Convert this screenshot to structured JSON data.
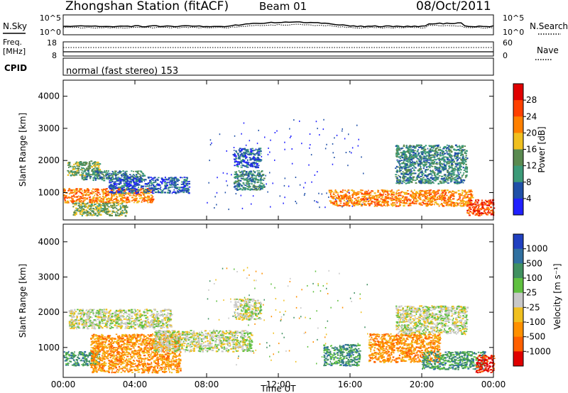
{
  "header": {
    "station": "Zhongshan Station (fitACF)",
    "beam": "Beam 01",
    "date": "08/Oct/2011"
  },
  "nsky_panel": {
    "left_label": "N.Sky",
    "right_label": "N.Search",
    "left_ticks": [
      "10^5",
      "10^0"
    ],
    "right_ticks": [
      "10^5",
      "10^0"
    ]
  },
  "freq_panel": {
    "left_label_1": "Freq.",
    "left_label_2": "[MHz]",
    "right_label": "Nave",
    "left_ticks": [
      "18",
      "8"
    ],
    "right_ticks": [
      "60",
      "0"
    ]
  },
  "cpid_panel": {
    "label": "CPID",
    "mode_text": "normal (fast stereo) 153"
  },
  "chart_data": [
    {
      "type": "heatmap",
      "name": "power",
      "ylabel": "Slant Range [km]",
      "xlabel": "",
      "xlim": [
        0,
        24
      ],
      "ylim": [
        150,
        4500
      ],
      "yticks": [
        "1000",
        "2000",
        "3000",
        "4000"
      ],
      "colorbar_label": "Power [dB]",
      "colorbar_ticks": [
        "4",
        "8",
        "12",
        "16",
        "20",
        "24",
        "28"
      ],
      "colors": [
        "#2020ff",
        "#2050a8",
        "#3c9a78",
        "#5a8a50",
        "#f0c020",
        "#ff8000",
        "#ff4000",
        "#e00000"
      ],
      "bands": [
        {
          "t0": 0.0,
          "t1": 5.0,
          "r0": 700,
          "r1": 1150,
          "level": 5
        },
        {
          "t0": 0.2,
          "t1": 2.0,
          "r0": 1550,
          "r1": 2000,
          "level": 3
        },
        {
          "t0": 1.0,
          "t1": 4.5,
          "r0": 1400,
          "r1": 1700,
          "level": 2
        },
        {
          "t0": 2.5,
          "t1": 7.0,
          "r0": 1000,
          "r1": 1500,
          "level": 1
        },
        {
          "t0": 0.5,
          "t1": 3.5,
          "r0": 300,
          "r1": 700,
          "level": 3
        },
        {
          "t0": 9.5,
          "t1": 11.0,
          "r0": 1800,
          "r1": 2400,
          "level": 1
        },
        {
          "t0": 9.5,
          "t1": 11.2,
          "r0": 1100,
          "r1": 1700,
          "level": 2
        },
        {
          "t0": 14.8,
          "t1": 22.8,
          "r0": 600,
          "r1": 1100,
          "level": 5
        },
        {
          "t0": 18.5,
          "t1": 22.5,
          "r0": 1300,
          "r1": 2500,
          "level": 2
        },
        {
          "t0": 22.5,
          "t1": 24.0,
          "r0": 300,
          "r1": 800,
          "level": 6
        }
      ]
    },
    {
      "type": "heatmap",
      "name": "velocity",
      "ylabel": "Slant Range [km]",
      "xlabel": "Time UT",
      "xlim": [
        0,
        24
      ],
      "ylim": [
        150,
        4500
      ],
      "xticks": [
        "00:00",
        "04:00",
        "08:00",
        "12:00",
        "16:00",
        "20:00",
        "00:00"
      ],
      "yticks": [
        "1000",
        "2000",
        "3000",
        "4000"
      ],
      "colorbar_label": "Velocity [m s⁻¹]",
      "colorbar_ticks": [
        "1000",
        "500",
        "100",
        "25",
        "-25",
        "-100",
        "-500",
        "-1000"
      ],
      "colors": [
        "#2040c0",
        "#3070a0",
        "#409060",
        "#60c040",
        "#c8c8c8",
        "#f0c020",
        "#ff9000",
        "#ff6000",
        "#e00000"
      ],
      "bands": [
        {
          "t0": 0.0,
          "t1": 2.0,
          "r0": 500,
          "r1": 900,
          "level": 2
        },
        {
          "t0": 1.5,
          "t1": 6.5,
          "r0": 300,
          "r1": 1400,
          "level": 6
        },
        {
          "t0": 0.3,
          "t1": 6.0,
          "r0": 1550,
          "r1": 2100,
          "level": 4
        },
        {
          "t0": 5.0,
          "t1": 10.5,
          "r0": 900,
          "r1": 1500,
          "level": 4
        },
        {
          "t0": 9.5,
          "t1": 11.0,
          "r0": 1800,
          "r1": 2400,
          "level": 4
        },
        {
          "t0": 14.5,
          "t1": 16.5,
          "r0": 500,
          "r1": 1100,
          "level": 2
        },
        {
          "t0": 17.0,
          "t1": 21.0,
          "r0": 600,
          "r1": 1400,
          "level": 6
        },
        {
          "t0": 18.5,
          "t1": 22.5,
          "r0": 1400,
          "r1": 2200,
          "level": 4
        },
        {
          "t0": 20.0,
          "t1": 23.5,
          "r0": 400,
          "r1": 900,
          "level": 2
        },
        {
          "t0": 23.0,
          "t1": 24.0,
          "r0": 300,
          "r1": 800,
          "level": 8
        }
      ]
    }
  ]
}
